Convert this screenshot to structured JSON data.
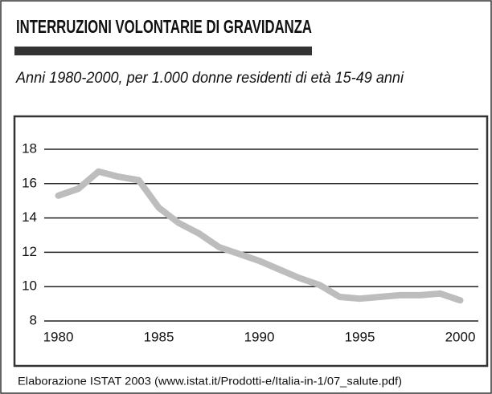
{
  "chart_data": {
    "type": "line",
    "title": "INTERRUZIONI VOLONTARIE DI GRAVIDANZA",
    "subtitle": "Anni 1980-2000, per 1.000 donne residenti di età 15-49 anni",
    "source": "Elaborazione ISTAT 2003 (www.istat.it/Prodotti-e/Italia-in-1/07_salute.pdf)",
    "x": [
      1980,
      1981,
      1982,
      1983,
      1984,
      1985,
      1986,
      1987,
      1988,
      1989,
      1990,
      1991,
      1992,
      1993,
      1994,
      1995,
      1996,
      1997,
      1998,
      1999,
      2000
    ],
    "values": [
      15.3,
      15.7,
      16.7,
      16.4,
      16.2,
      14.6,
      13.7,
      13.1,
      12.3,
      11.9,
      11.5,
      11.0,
      10.5,
      10.1,
      9.4,
      9.3,
      9.4,
      9.5,
      9.5,
      9.6,
      9.2
    ],
    "color": "#bdbdbd",
    "xlim": [
      1979.3,
      2000.9
    ],
    "xticks": [
      1980,
      1985,
      1990,
      1995,
      2000
    ],
    "ylim": [
      8,
      18
    ],
    "yticks": [
      8,
      10,
      12,
      14,
      16,
      18
    ],
    "grid": true
  }
}
